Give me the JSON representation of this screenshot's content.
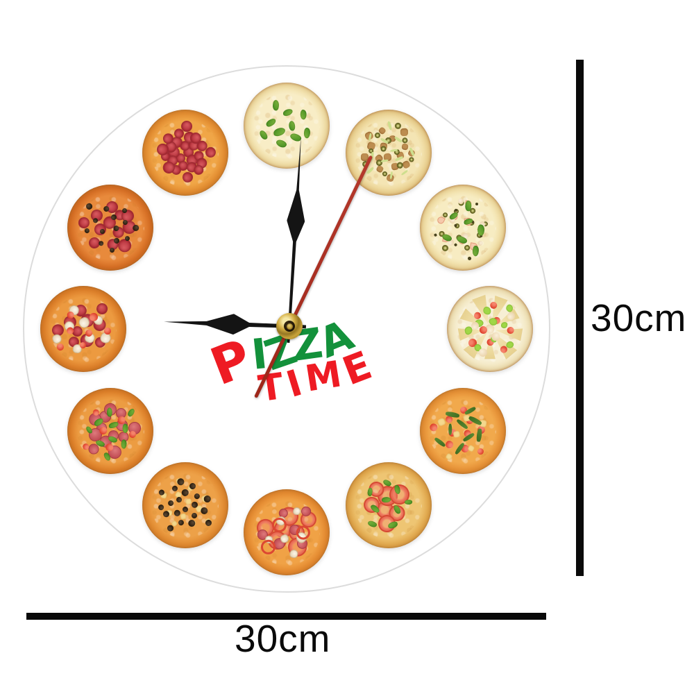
{
  "title": {
    "lead": "P",
    "rest": "IZZA",
    "word2": "TIME",
    "lead_color": "#ee1b23",
    "rest_color": "#13913b",
    "word2_color": "#ee1b23"
  },
  "dimensions": {
    "height_label": "30cm",
    "width_label": "30cm",
    "marker_color": "#0a0a0a"
  },
  "clock": {
    "time_shown": "9:00:04",
    "face_color": "#ffffff",
    "face_edge_color": "#dcdcdc",
    "hands": {
      "color": "#141414",
      "second_color": "#aa2d22",
      "cap_gold_color": "#c8a33a",
      "hour_angle_deg": 272,
      "minute_angle_deg": 3.5,
      "second_angle_deg": 25.6
    },
    "pizzas": [
      {
        "hour": 12,
        "name": "four-cheese-basil",
        "base": "#f8edc6",
        "mid": "#f1dfa6",
        "crust": "#e2ba7c",
        "board": "#cfa060",
        "toppings": [
          {
            "type": "basil",
            "count": 10,
            "size": 15
          }
        ]
      },
      {
        "hour": 1,
        "name": "tuna-green-olive",
        "base": "#f4e5b4",
        "mid": "#ecd493",
        "crust": "#dcab68",
        "board": "#c99a58",
        "toppings": [
          {
            "type": "crumble",
            "count": 16,
            "size": 10
          },
          {
            "type": "olive-green",
            "count": 12,
            "size": 8
          },
          {
            "type": "shred",
            "count": 12,
            "size": 12
          }
        ]
      },
      {
        "hour": 2,
        "name": "olive-shrimp-basil",
        "base": "#f7ecc2",
        "mid": "#f0dda2",
        "crust": "#dfb172",
        "board": "#cb9c5a",
        "toppings": [
          {
            "type": "olive-green",
            "count": 12,
            "size": 8
          },
          {
            "type": "shrimp",
            "count": 8,
            "size": 10
          },
          {
            "type": "chicken",
            "count": 6,
            "size": 8
          },
          {
            "type": "caper",
            "count": 8,
            "size": 4
          },
          {
            "type": "basil",
            "count": 7,
            "size": 14
          }
        ]
      },
      {
        "hour": 3,
        "name": "cheese-wedge-cherry-tomato",
        "base": "#f7efd4",
        "mid": "#f1e5ba",
        "crust": "#dcae71",
        "board": "#c89a58",
        "toppings": [
          {
            "type": "wedge",
            "count": 9,
            "size": 38,
            "radial": true,
            "radius": 27
          },
          {
            "type": "chicken",
            "count": 1,
            "size": 13,
            "radial": true,
            "radius": 0
          },
          {
            "type": "cherry",
            "count": 8,
            "size": 11
          },
          {
            "type": "lettuce",
            "count": 9,
            "size": 10
          },
          {
            "type": "chicken",
            "count": 4,
            "size": 12
          }
        ]
      },
      {
        "hour": 4,
        "name": "arugula-cherry-tomato",
        "base": "#f1a94c",
        "mid": "#e79136",
        "crust": "#da9340",
        "board": "#c68544",
        "toppings": [
          {
            "type": "cherry",
            "count": 10,
            "size": 10
          },
          {
            "type": "cheese",
            "count": 6,
            "size": 9
          },
          {
            "type": "arugula",
            "count": 9,
            "size": 18
          }
        ]
      },
      {
        "hour": 5,
        "name": "margherita-tomato-basil",
        "base": "#eec573",
        "mid": "#e3aa4e",
        "crust": "#d89b4a",
        "board": "#c38a46",
        "toppings": [
          {
            "type": "tomato",
            "count": 7,
            "size": 26
          },
          {
            "type": "basil",
            "count": 9,
            "size": 13
          }
        ]
      },
      {
        "hour": 6,
        "name": "tomato-pepper-mushroom-salami",
        "base": "#f0a246",
        "mid": "#e58a30",
        "crust": "#d78c3e",
        "board": "#c07c3a",
        "toppings": [
          {
            "type": "tomato",
            "count": 7,
            "size": 24
          },
          {
            "type": "salami",
            "count": 6,
            "size": 15
          },
          {
            "type": "mushroom",
            "count": 6,
            "size": 13
          },
          {
            "type": "pepper-ring",
            "count": 3,
            "size": 19
          }
        ]
      },
      {
        "hour": 7,
        "name": "black-olive-onion",
        "base": "#eda148",
        "mid": "#e28a30",
        "crust": "#d6893c",
        "board": "#bf7c3a",
        "toppings": [
          {
            "type": "cheese",
            "count": 12,
            "size": 8
          },
          {
            "type": "olive-black",
            "count": 20,
            "size": 9
          }
        ]
      },
      {
        "hour": 8,
        "name": "salami-basil",
        "base": "#ec9c42",
        "mid": "#de7f28",
        "crust": "#d5883a",
        "board": "#bd7838",
        "toppings": [
          {
            "type": "salami",
            "count": 13,
            "size": 17
          },
          {
            "type": "cherry",
            "count": 6,
            "size": 10
          },
          {
            "type": "basil",
            "count": 10,
            "size": 13
          }
        ]
      },
      {
        "hour": 9,
        "name": "pepperoni-mushroom-tomato",
        "base": "#ec9a40",
        "mid": "#dd7e28",
        "crust": "#d4873a",
        "board": "#bc7737",
        "toppings": [
          {
            "type": "pepperoni",
            "count": 10,
            "size": 17
          },
          {
            "type": "mushroom",
            "count": 8,
            "size": 13
          },
          {
            "type": "cherry",
            "count": 7,
            "size": 11
          }
        ]
      },
      {
        "hour": 10,
        "name": "pepperoni-black-olive",
        "base": "#e88a3c",
        "mid": "#d76e24",
        "crust": "#cf8134",
        "board": "#b87433",
        "toppings": [
          {
            "type": "pepperoni",
            "count": 12,
            "size": 18
          },
          {
            "type": "olive-black",
            "count": 14,
            "size": 8
          }
        ]
      },
      {
        "hour": 11,
        "name": "pepperoni-classic",
        "base": "#f0a647",
        "mid": "#e38c30",
        "crust": "#d98f3e",
        "board": "#c07e3b",
        "toppings": [
          {
            "type": "pepperoni",
            "count": 26,
            "size": 15
          }
        ]
      }
    ]
  }
}
